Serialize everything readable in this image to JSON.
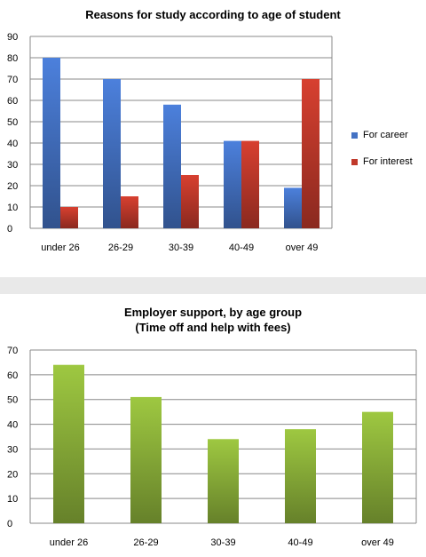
{
  "chart_data": [
    {
      "type": "bar",
      "title": "Reasons  for study according to age of student",
      "categories": [
        "under 26",
        "26-29",
        "30-39",
        "40-49",
        "over 49"
      ],
      "series": [
        {
          "name": "For career",
          "values": [
            80,
            70,
            58,
            41,
            19
          ],
          "color": "#4472C4"
        },
        {
          "name": "For interest",
          "values": [
            10,
            15,
            25,
            41,
            70
          ],
          "color": "#C0392B"
        }
      ],
      "ylim": [
        0,
        90
      ],
      "yticks": [
        0,
        10,
        20,
        30,
        40,
        50,
        60,
        70,
        80,
        90
      ],
      "grid": true,
      "legend": "right"
    },
    {
      "type": "bar",
      "title": [
        "Employer support, by age group",
        "(Time off and help with fees)"
      ],
      "categories": [
        "under 26",
        "26-29",
        "30-39",
        "40-49",
        "over 49"
      ],
      "series": [
        {
          "values": [
            64,
            51,
            34,
            38,
            45
          ],
          "color": "#8DB33A"
        }
      ],
      "ylim": [
        0,
        70
      ],
      "yticks": [
        0,
        10,
        20,
        30,
        40,
        50,
        60,
        70
      ],
      "grid": true
    }
  ]
}
